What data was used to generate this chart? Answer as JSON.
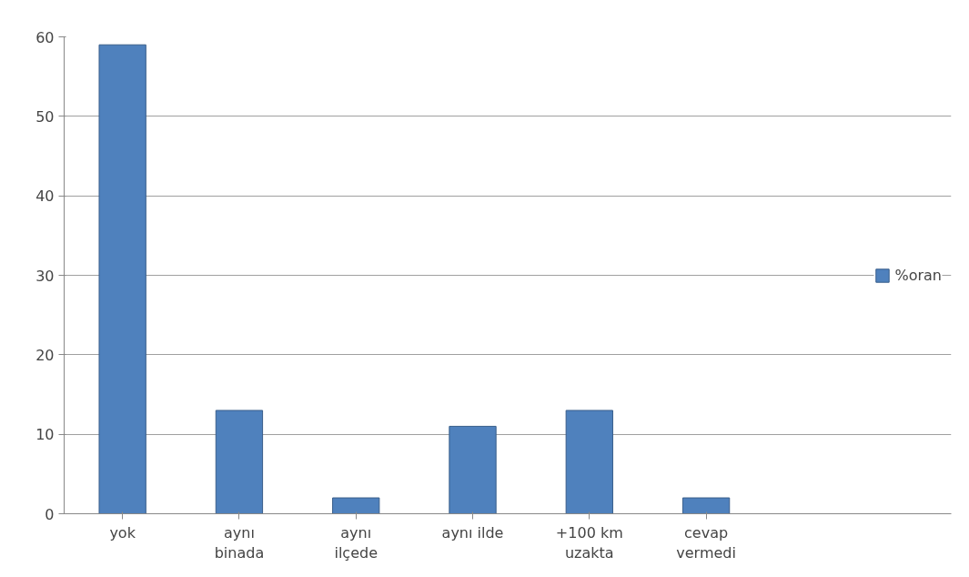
{
  "chart_data": {
    "type": "bar",
    "categories": [
      "yok",
      "aynı binada",
      "aynı ilçede",
      "aynı ilde",
      "+100 km uzakta",
      "cevap vermedi"
    ],
    "series": [
      {
        "name": "%oran",
        "color": "#4f81bd",
        "values": [
          59,
          13,
          2,
          11,
          13,
          2
        ]
      }
    ],
    "ylim": [
      0,
      60
    ],
    "yticks": [
      0,
      10,
      20,
      30,
      40,
      50,
      60
    ],
    "grid": "y",
    "legend": "right"
  }
}
